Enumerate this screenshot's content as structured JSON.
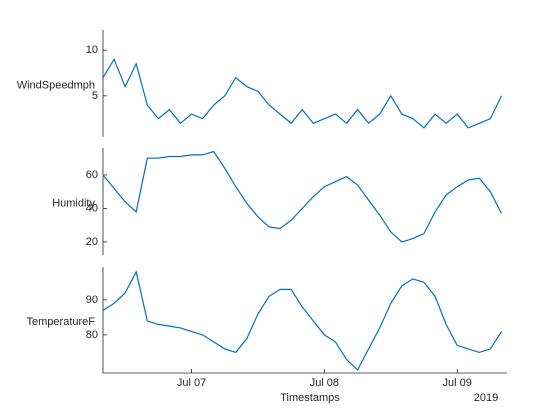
{
  "chart_data": {
    "type": "line",
    "layout": "stacked",
    "xlabel": "Timestamps",
    "year_label": "2019",
    "xlim": [
      "2019-07-06T08:00",
      "2019-07-09T09:00"
    ],
    "xticks": [
      {
        "value": "2019-07-07T00:00",
        "label": "Jul 07"
      },
      {
        "value": "2019-07-08T00:00",
        "label": "Jul 08"
      },
      {
        "value": "2019-07-09T00:00",
        "label": "Jul 09"
      }
    ],
    "x": [
      "2019-07-06T08:00",
      "2019-07-06T10:00",
      "2019-07-06T12:00",
      "2019-07-06T14:00",
      "2019-07-06T16:00",
      "2019-07-06T18:00",
      "2019-07-06T20:00",
      "2019-07-06T22:00",
      "2019-07-07T00:00",
      "2019-07-07T02:00",
      "2019-07-07T04:00",
      "2019-07-07T06:00",
      "2019-07-07T08:00",
      "2019-07-07T10:00",
      "2019-07-07T12:00",
      "2019-07-07T14:00",
      "2019-07-07T16:00",
      "2019-07-07T18:00",
      "2019-07-07T20:00",
      "2019-07-07T22:00",
      "2019-07-08T00:00",
      "2019-07-08T02:00",
      "2019-07-08T04:00",
      "2019-07-08T06:00",
      "2019-07-08T08:00",
      "2019-07-08T10:00",
      "2019-07-08T12:00",
      "2019-07-08T14:00",
      "2019-07-08T16:00",
      "2019-07-08T18:00",
      "2019-07-08T20:00",
      "2019-07-08T22:00",
      "2019-07-09T00:00",
      "2019-07-09T02:00",
      "2019-07-09T04:00",
      "2019-07-09T06:00",
      "2019-07-09T08:00"
    ],
    "series": [
      {
        "name": "WindSpeedmph",
        "color": "#0072bd",
        "ylim": [
          0.5,
          12.2
        ],
        "yticks": [
          5,
          10
        ],
        "values": [
          7,
          9,
          6,
          8.5,
          4,
          2.5,
          3.5,
          2,
          3,
          2.5,
          4,
          5,
          7,
          6,
          5.5,
          4,
          3,
          2,
          3.5,
          2,
          2.5,
          3,
          2,
          3.5,
          2,
          3,
          5,
          3,
          2.5,
          1.5,
          3,
          2,
          3,
          1.5,
          2,
          2.5,
          5
        ]
      },
      {
        "name": "Humidity",
        "color": "#0072bd",
        "ylim": [
          12.2,
          76.1
        ],
        "yticks": [
          20,
          40,
          60
        ],
        "values": [
          60,
          52,
          44,
          38,
          70,
          70,
          71,
          71,
          72,
          72,
          74,
          64,
          53,
          43,
          35,
          29,
          28,
          33,
          40,
          47,
          53,
          56,
          59,
          54,
          45,
          36,
          26,
          20,
          22,
          25,
          38,
          48,
          53,
          57,
          58,
          50,
          37
        ]
      },
      {
        "name": "TemperatureF",
        "color": "#0072bd",
        "ylim": [
          69.1,
          99.4
        ],
        "yticks": [
          80,
          90
        ],
        "values": [
          87,
          89,
          92,
          98,
          84,
          83,
          82.5,
          82,
          81,
          80,
          78,
          76,
          75,
          79,
          86,
          91,
          93,
          93,
          88,
          84,
          80,
          78,
          73,
          70,
          76,
          82,
          89,
          94,
          96,
          95,
          91,
          83,
          77,
          76,
          75,
          76,
          81
        ]
      }
    ]
  }
}
